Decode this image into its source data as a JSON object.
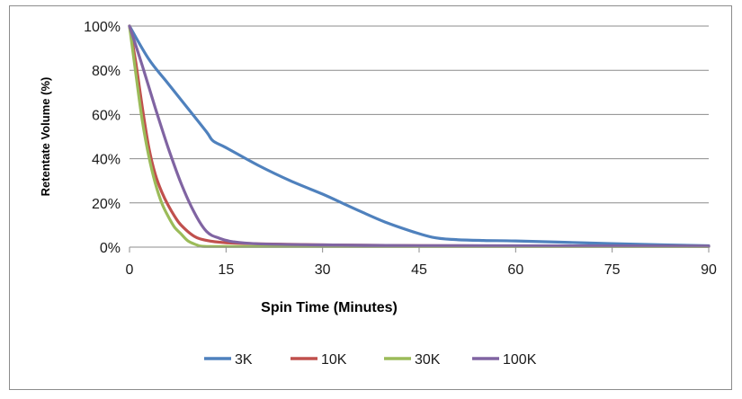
{
  "chart_data": {
    "type": "line",
    "title": "",
    "xlabel": "Spin Time (Minutes)",
    "ylabel": "Retentate Volume (%)",
    "xlim": [
      0,
      90
    ],
    "ylim": [
      0,
      100
    ],
    "x_ticks": [
      "0",
      "15",
      "30",
      "45",
      "60",
      "75",
      "90"
    ],
    "y_ticks": [
      "0%",
      "20%",
      "40%",
      "60%",
      "80%",
      "100%"
    ],
    "grid": "horizontal",
    "legend_position": "bottom",
    "series": [
      {
        "name": "3K",
        "color": "#4f81bd",
        "points": [
          [
            0,
            100
          ],
          [
            3,
            85
          ],
          [
            6,
            74
          ],
          [
            9,
            63
          ],
          [
            12,
            52
          ],
          [
            13,
            48
          ],
          [
            15,
            45
          ],
          [
            20,
            37
          ],
          [
            25,
            30
          ],
          [
            30,
            24
          ],
          [
            33,
            20
          ],
          [
            36,
            16
          ],
          [
            40,
            11
          ],
          [
            44,
            7
          ],
          [
            47,
            4.5
          ],
          [
            50,
            3.5
          ],
          [
            55,
            3
          ],
          [
            60,
            2.8
          ],
          [
            70,
            2
          ],
          [
            80,
            1.2
          ],
          [
            90,
            0.6
          ]
        ]
      },
      {
        "name": "10K",
        "color": "#c0504d",
        "points": [
          [
            0,
            100
          ],
          [
            1,
            83
          ],
          [
            2,
            63
          ],
          [
            3,
            45
          ],
          [
            4,
            33
          ],
          [
            5,
            25
          ],
          [
            6,
            19
          ],
          [
            7,
            14
          ],
          [
            8,
            10
          ],
          [
            10,
            5
          ],
          [
            12,
            3
          ],
          [
            15,
            2
          ],
          [
            20,
            1.5
          ],
          [
            30,
            1
          ],
          [
            45,
            0.7
          ],
          [
            60,
            0.5
          ],
          [
            90,
            0.4
          ]
        ]
      },
      {
        "name": "30K",
        "color": "#9bbb59",
        "points": [
          [
            0,
            100
          ],
          [
            1,
            78
          ],
          [
            2,
            57
          ],
          [
            3,
            41
          ],
          [
            4,
            29
          ],
          [
            5,
            20
          ],
          [
            6,
            14
          ],
          [
            7,
            9
          ],
          [
            8,
            6
          ],
          [
            9,
            3
          ],
          [
            10,
            1.5
          ],
          [
            11,
            0.5
          ],
          [
            12,
            0.3
          ],
          [
            15,
            0.3
          ],
          [
            30,
            0.3
          ],
          [
            60,
            0.3
          ],
          [
            90,
            0.3
          ]
        ]
      },
      {
        "name": "100K",
        "color": "#8064a2",
        "points": [
          [
            0,
            100
          ],
          [
            2,
            82
          ],
          [
            4,
            63
          ],
          [
            6,
            45
          ],
          [
            8,
            29
          ],
          [
            10,
            16
          ],
          [
            12,
            7
          ],
          [
            14,
            4
          ],
          [
            16,
            2.5
          ],
          [
            20,
            1.5
          ],
          [
            30,
            1
          ],
          [
            45,
            0.7
          ],
          [
            60,
            0.6
          ],
          [
            90,
            0.4
          ]
        ]
      }
    ]
  }
}
